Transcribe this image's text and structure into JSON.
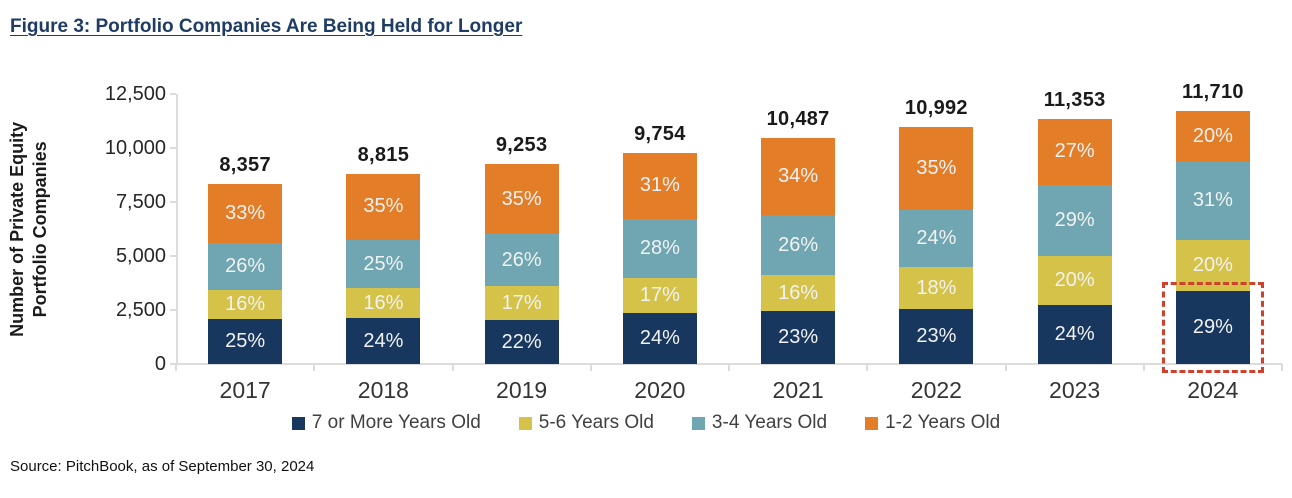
{
  "title": "Figure 3: Portfolio Companies Are Being Held for Longer",
  "source": "Source: PitchBook, as of September 30, 2024",
  "chart_data": {
    "type": "bar",
    "stacked": true,
    "title": "Figure 3: Portfolio Companies Are Being Held for Longer",
    "ylabel": "Number of Private Equity Portfolio Companies",
    "ylabel_lines": [
      "Number of Private Equity",
      "Portfolio Companies"
    ],
    "categories": [
      "2017",
      "2018",
      "2019",
      "2020",
      "2021",
      "2022",
      "2023",
      "2024"
    ],
    "totals": [
      8357,
      8815,
      9253,
      9754,
      10487,
      10992,
      11353,
      11710
    ],
    "total_labels": [
      "8,357",
      "8,815",
      "9,253",
      "9,754",
      "10,487",
      "10,992",
      "11,353",
      "11,710"
    ],
    "series": [
      {
        "name": "7 or More Years Old",
        "color": "#17375E",
        "values_pct": [
          25,
          24,
          22,
          24,
          23,
          23,
          24,
          29
        ]
      },
      {
        "name": "5-6 Years Old",
        "color": "#D4C249",
        "values_pct": [
          16,
          16,
          17,
          17,
          16,
          18,
          20,
          20
        ]
      },
      {
        "name": "3-4 Years Old",
        "color": "#6FA6B2",
        "values_pct": [
          26,
          25,
          26,
          28,
          26,
          24,
          29,
          31
        ]
      },
      {
        "name": "1-2 Years Old",
        "color": "#E37D28",
        "values_pct": [
          33,
          35,
          35,
          31,
          34,
          35,
          27,
          20
        ]
      }
    ],
    "ylim": [
      0,
      12500
    ],
    "yticks": [
      0,
      2500,
      5000,
      7500,
      10000,
      12500
    ],
    "ytick_labels": [
      "0",
      "2,500",
      "5,000",
      "7,500",
      "10,000",
      "12,500"
    ],
    "grid": false,
    "legend_position": "bottom-center",
    "axis_color": "#dcdcdc",
    "highlight": {
      "category": "2024",
      "series": "7 or More Years Old",
      "color": "#D0402C",
      "style": "dashed-box"
    }
  }
}
